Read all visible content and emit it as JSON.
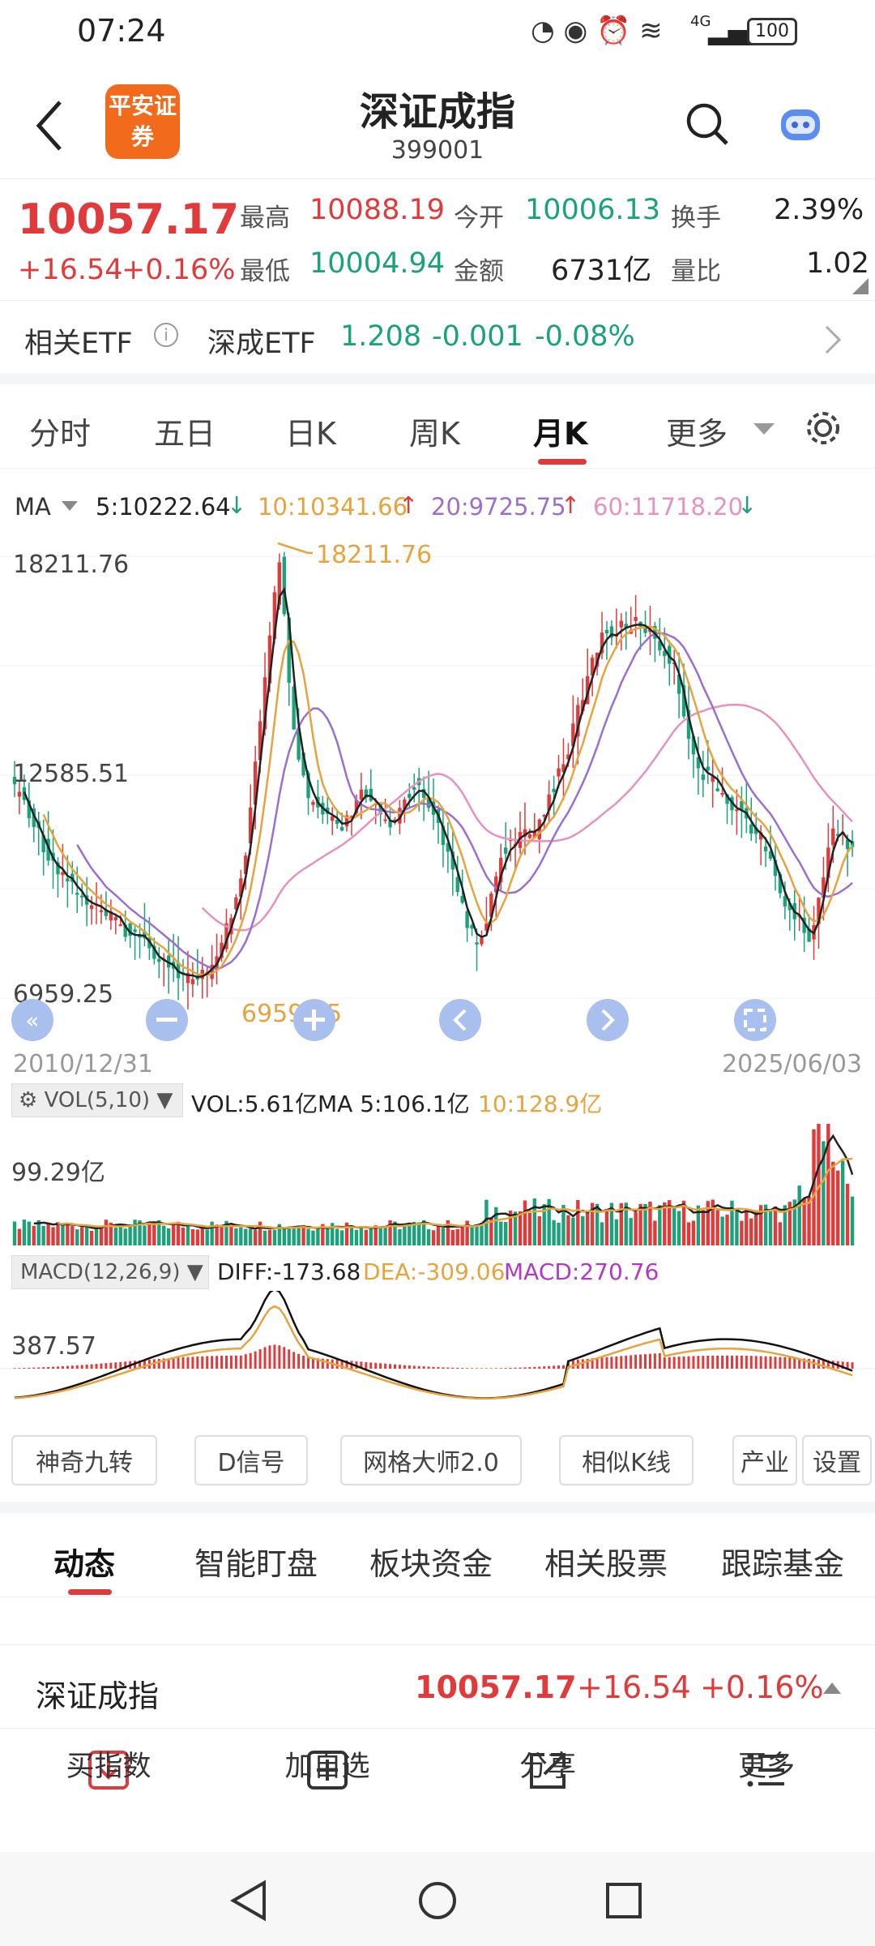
{
  "status": {
    "time": "07:24",
    "battery": "100",
    "network": "4G"
  },
  "header": {
    "logo": "平安证券",
    "title": "深证成指",
    "code": "399001"
  },
  "quote": {
    "price": "10057.17",
    "change": "+16.54",
    "change_pct": "+0.16%",
    "high_label": "最高",
    "high": "10088.19",
    "open_label": "今开",
    "open": "10006.13",
    "turnover_label": "换手",
    "turnover": "2.39%",
    "low_label": "最低",
    "low": "10004.94",
    "amount_label": "金额",
    "amount": "6731亿",
    "vr_label": "量比",
    "vr": "1.02"
  },
  "etf": {
    "label": "相关ETF",
    "name": "深成ETF",
    "price": "1.208",
    "change": "-0.001",
    "pct": "-0.08%"
  },
  "tabs": [
    "分时",
    "五日",
    "日K",
    "周K",
    "月K",
    "更多"
  ],
  "active_tab": "月K",
  "ma": {
    "label": "MA",
    "ma5": "5:10222.64",
    "ma10": "10:10341.66",
    "ma20": "20:9725.75",
    "ma60": "60:11718.20"
  },
  "kline": {
    "ymax": "18211.76",
    "ymid": "12585.51",
    "ymin": "6959.25",
    "max_marker": "18211.76",
    "min_marker": "6959.25",
    "start_date": "2010/12/31",
    "end_date": "2025/06/03"
  },
  "vol": {
    "selector": "VOL(5,10)",
    "vol": "VOL:5.61亿",
    "ma5": "MA 5:106.1亿",
    "ma10": "10:128.9亿",
    "ylabel": "99.29亿"
  },
  "macd": {
    "selector": "MACD(12,26,9)",
    "diff": "DIFF:-173.68",
    "dea": "DEA:-309.06",
    "macd": "MACD:270.76",
    "ylabel": "387.57"
  },
  "tools": [
    "神奇九转",
    "D信号",
    "网格大师2.0",
    "相似K线",
    "产业",
    "设置"
  ],
  "news_tabs": [
    "动态",
    "智能盯盘",
    "板块资金",
    "相关股票",
    "跟踪基金"
  ],
  "summary": {
    "name": "深证成指",
    "price": "10057.17",
    "change": "+16.54",
    "pct": "+0.16%"
  },
  "bottom": {
    "buy": "买指数",
    "add": "加自选",
    "share": "分享",
    "more": "更多"
  },
  "colors": {
    "up": "#e03a3a",
    "down": "#1aa37a",
    "accent": "#e03a3a",
    "ma5": "#222222",
    "ma10": "#e8a33c",
    "ma20": "#9b6fd0",
    "ma60": "#e691c0"
  }
}
